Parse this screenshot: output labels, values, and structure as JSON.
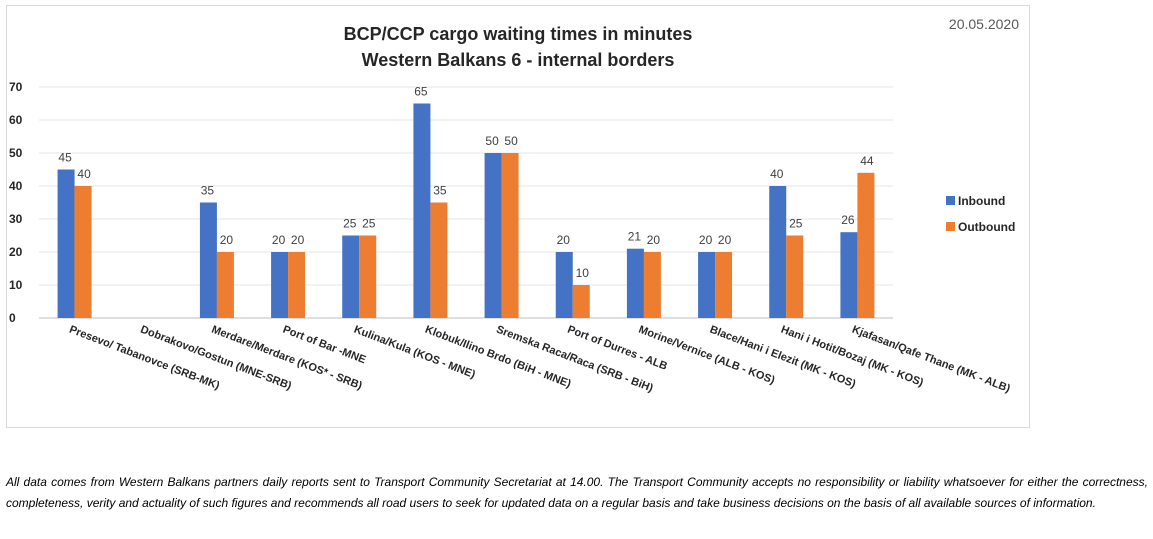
{
  "date": "20.05.2020",
  "disclaimer": "All data comes from Western Balkans partners daily reports sent to Transport Community Secretariat at 14.00. The Transport Community accepts no responsibility or liability whatsoever for either the correctness, completeness, verity and actuality of such figures and recommends all road users to seek for updated data on a regular basis and take business decisions on the basis of all available sources of information.",
  "chart_data": {
    "type": "bar",
    "title": "BCP/CCP cargo waiting times in minutes",
    "subtitle": "Western Balkans 6 - internal borders",
    "xlabel": "",
    "ylabel": "",
    "ylim": [
      0,
      70
    ],
    "yticks": [
      0,
      10,
      20,
      30,
      40,
      50,
      60,
      70
    ],
    "grid": true,
    "legend_position": "right",
    "categories": [
      "Presevo/ Tabanovce (SRB-MK)",
      "Dobrakovo/Gostun (MNE-SRB)",
      "Merdare/Merdare (KOS* - SRB)",
      "Port of Bar -MNE",
      "Kulina/Kula (KOS - MNE)",
      "Klobuk/Ilino Brdo (BiH - MNE)",
      "Sremska Raca/Raca (SRB - BiH)",
      "Port of Durres - ALB",
      "Morine/Vernice (ALB - KOS)",
      "Blace/Hani i Elezit (MK - KOS)",
      "Hani i Hotit/Bozaj (MK - KOS)",
      "Kjafasan/Qafe Thane (MK - ALB)"
    ],
    "series": [
      {
        "name": "Inbound",
        "color": "#4472c4",
        "values": [
          45,
          null,
          35,
          20,
          25,
          65,
          50,
          20,
          21,
          20,
          40,
          26
        ]
      },
      {
        "name": "Outbound",
        "color": "#ed7d31",
        "values": [
          40,
          null,
          20,
          20,
          25,
          35,
          50,
          10,
          20,
          20,
          25,
          44
        ]
      }
    ]
  }
}
